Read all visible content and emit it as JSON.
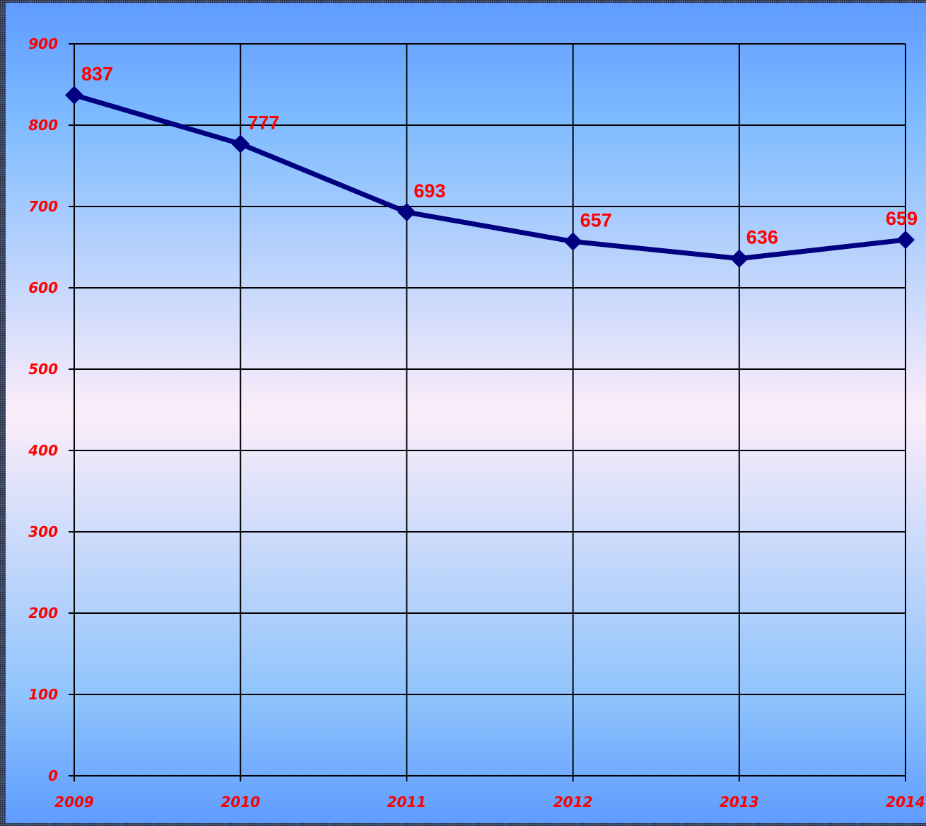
{
  "chart_data": {
    "type": "line",
    "categories": [
      "2009",
      "2010",
      "2011",
      "2012",
      "2013",
      "2014"
    ],
    "series": [
      {
        "name": null,
        "color": "#000080",
        "values": [
          837,
          777,
          693,
          657,
          636,
          659
        ]
      }
    ],
    "ylim": [
      0,
      900
    ],
    "yticks": [
      0,
      100,
      200,
      300,
      400,
      500,
      600,
      700,
      800,
      900
    ],
    "grid": true
  }
}
